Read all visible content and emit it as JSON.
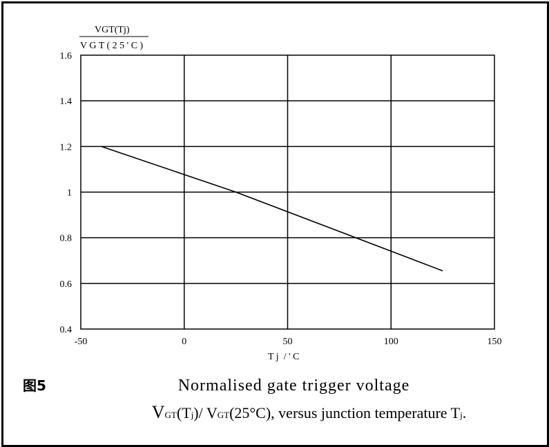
{
  "figure_label": "图5",
  "caption": {
    "line1": "Normalised gate trigger voltage",
    "line2_v": "V",
    "line2_gt1": "GT",
    "line2_a": "(T",
    "line2_j1": "j",
    "line2_b": ")/ V",
    "line2_gt2": "GT",
    "line2_c": "(25°C), versus junction temperature T",
    "line2_j2": "j",
    "line2_d": "."
  },
  "chart_data": {
    "type": "line",
    "ylabel_numerator": "VGT(Tj)",
    "ylabel_denominator": "V G T ( 2 5 ' C )",
    "xlabel": "T j  / ' C",
    "xlim": [
      -50,
      150
    ],
    "ylim": [
      0.4,
      1.6
    ],
    "x_ticks": [
      "-50",
      "0",
      "50",
      "100",
      "150"
    ],
    "y_ticks": [
      "0.4",
      "0.6",
      "0.8",
      "1",
      "1.2",
      "1.4",
      "1.6"
    ],
    "grid": true,
    "series": [
      {
        "x": [
          -40,
          25,
          125
        ],
        "y": [
          1.2,
          1.0,
          0.655
        ]
      }
    ]
  }
}
